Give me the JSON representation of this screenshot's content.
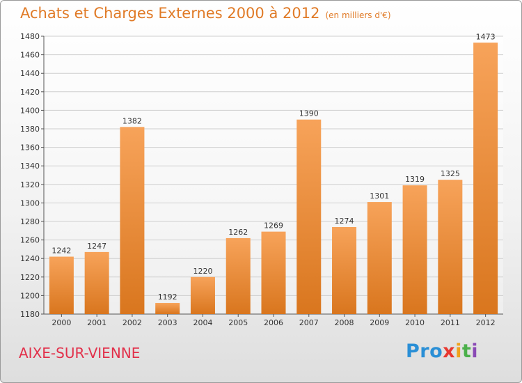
{
  "header": {
    "title": "Achats et Charges Externes 2000 à 2012",
    "subtitle": "(en milliers d'€)"
  },
  "footer": {
    "location": "AIXE-SUR-VIENNE",
    "logo": [
      "Pro",
      "x",
      "i",
      "t",
      "i"
    ]
  },
  "colors": {
    "title": "#e07a26",
    "bar_light": "#f7a35a",
    "bar_dark": "#d9761e",
    "location": "#e2304a"
  },
  "chart_data": {
    "type": "bar",
    "title": "Achats et Charges Externes 2000 à 2012",
    "subtitle": "(en milliers d'€)",
    "categories": [
      "2000",
      "2001",
      "2002",
      "2003",
      "2004",
      "2005",
      "2006",
      "2007",
      "2008",
      "2009",
      "2010",
      "2011",
      "2012"
    ],
    "values": [
      1242,
      1247,
      1382,
      1192,
      1220,
      1262,
      1269,
      1390,
      1274,
      1301,
      1319,
      1325,
      1473
    ],
    "ylim": [
      1180,
      1480
    ],
    "yticks": [
      1180,
      1200,
      1220,
      1240,
      1260,
      1280,
      1300,
      1320,
      1340,
      1360,
      1380,
      1400,
      1420,
      1440,
      1460,
      1480
    ],
    "grid": true,
    "data_labels": true,
    "legend": "none"
  }
}
